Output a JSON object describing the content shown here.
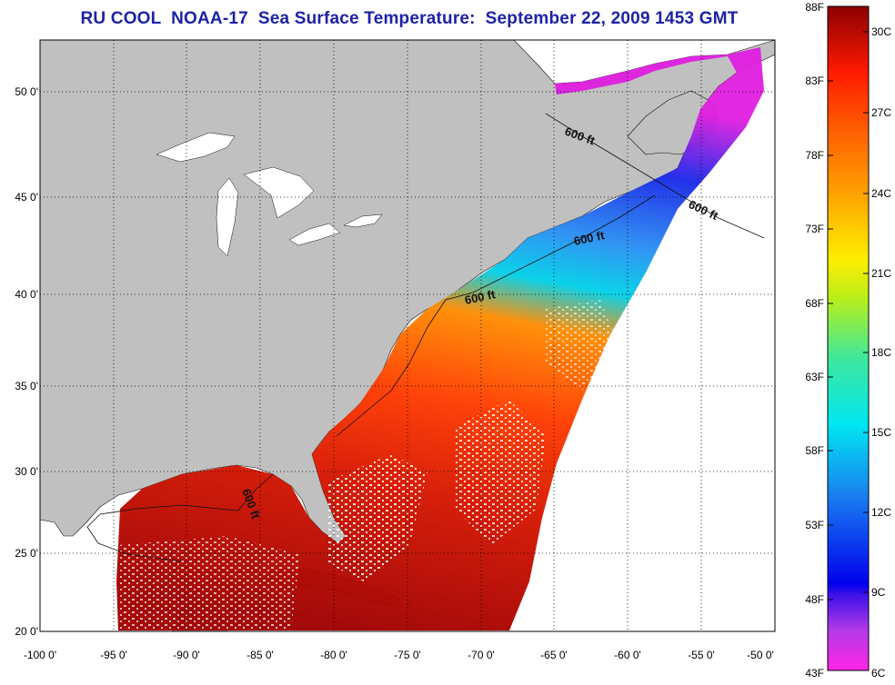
{
  "title": "RU COOL  NOAA-17  Sea Surface Temperature:  September 22, 2009 1453 GMT",
  "map": {
    "lon_labels": [
      "-100 0'",
      "-95 0'",
      "-90 0'",
      "-85 0'",
      "-80 0'",
      "-75 0'",
      "-70 0'",
      "-65 0'",
      "-60 0'",
      "-55 0'",
      "-50 0'"
    ],
    "lat_labels": [
      "50 0'",
      "45 0'",
      "40 0'",
      "35 0'",
      "30 0'",
      "25 0'",
      "20 0'"
    ],
    "lon_range": [
      -100,
      -50
    ],
    "lat_range": [
      20,
      52.5
    ],
    "grid": "dotted",
    "isobath_labels": [
      "600 ft",
      "600 ft",
      "600 ft",
      "600 ft",
      "600 ft"
    ]
  },
  "colorbar": {
    "fahrenheit_labels": [
      "88F",
      "83F",
      "78F",
      "73F",
      "68F",
      "63F",
      "58F",
      "53F",
      "48F",
      "43F"
    ],
    "celsius_labels": [
      "30C",
      "27C",
      "24C",
      "21C",
      "18C",
      "15C",
      "12C",
      "9C",
      "6C"
    ],
    "colors": [
      "#ff27e8",
      "#8a3ae8",
      "#0000ee",
      "#1c9cf6",
      "#00eeee",
      "#3ae89a",
      "#d8ee00",
      "#ffa500",
      "#ff2a00",
      "#8c0000"
    ]
  }
}
